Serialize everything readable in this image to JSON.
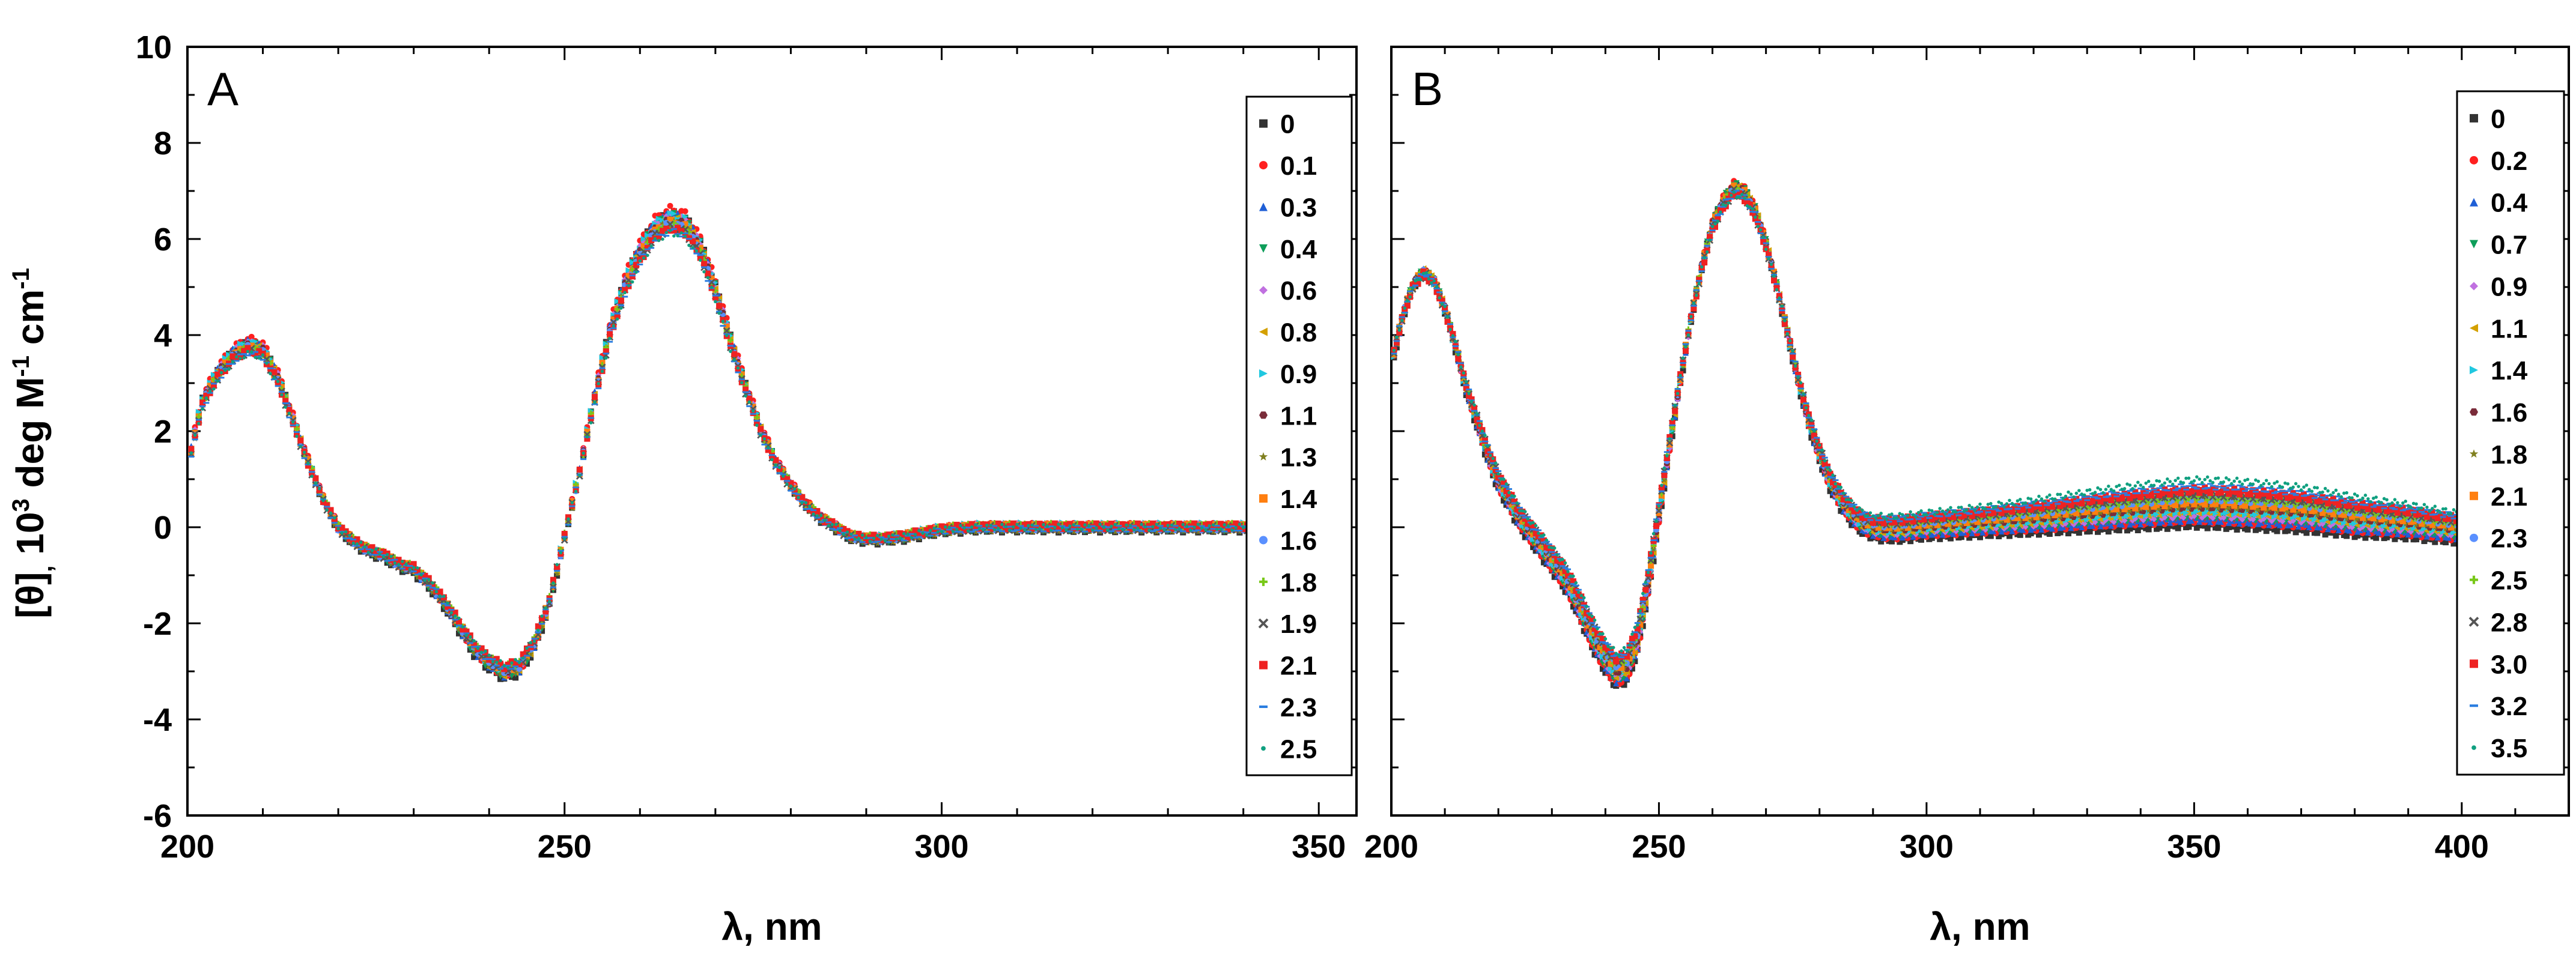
{
  "figure": {
    "y_axis_title": {
      "base": "[θ]",
      "sub": ",",
      "rest1": " 10",
      "sup1": "3",
      "rest2": " deg M",
      "sup2": "-1",
      "rest3": " cm",
      "sup3": "-1"
    }
  },
  "chart_data": [
    {
      "type": "scatter",
      "panel_label": "A",
      "xlabel": "λ, nm",
      "xlim": [
        200,
        355
      ],
      "ylim": [
        -6,
        10
      ],
      "xticks": [
        200,
        250,
        300,
        350
      ],
      "yticks": [
        -6,
        -4,
        -2,
        0,
        2,
        4,
        6,
        8,
        10
      ],
      "x_tick_labels": [
        "200",
        "250",
        "300",
        "350"
      ],
      "y_tick_labels": [
        "-6",
        "-4",
        "-2",
        "0",
        "2",
        "4",
        "6",
        "8",
        "10"
      ],
      "legend_position": "right",
      "curve_profile": {
        "x": [
          200,
          202,
          204,
          206,
          208,
          210,
          212,
          214,
          216,
          218,
          220,
          222,
          224,
          226,
          228,
          230,
          232,
          234,
          236,
          238,
          240,
          242,
          244,
          246,
          248,
          250,
          252,
          254,
          256,
          258,
          260,
          262,
          264,
          266,
          268,
          270,
          272,
          274,
          276,
          278,
          280,
          282,
          284,
          286,
          288,
          290,
          292,
          295,
          300,
          305,
          310,
          320,
          330,
          340,
          350,
          355
        ],
        "y": [
          1.3,
          2.7,
          3.3,
          3.7,
          3.9,
          3.8,
          3.2,
          2.3,
          1.4,
          0.6,
          0.0,
          -0.3,
          -0.5,
          -0.6,
          -0.8,
          -0.9,
          -1.2,
          -1.6,
          -2.1,
          -2.6,
          -2.9,
          -3.1,
          -3.0,
          -2.5,
          -1.6,
          -0.2,
          1.2,
          2.8,
          4.2,
          5.2,
          5.9,
          6.4,
          6.6,
          6.5,
          6.0,
          5.1,
          4.0,
          3.0,
          2.1,
          1.4,
          0.9,
          0.5,
          0.2,
          0.0,
          -0.2,
          -0.25,
          -0.25,
          -0.2,
          -0.05,
          0.0,
          0.0,
          0.0,
          0.0,
          0.0,
          0.0,
          0.0
        ]
      },
      "series": [
        {
          "name": "0",
          "color": "#333333",
          "marker": "square",
          "scale": 1.0,
          "shift": -0.05
        },
        {
          "name": "0.1",
          "color": "#ff2020",
          "marker": "circle",
          "scale": 1.0,
          "shift": 0.03
        },
        {
          "name": "0.3",
          "color": "#1f5fd6",
          "marker": "triangle-up",
          "scale": 0.99,
          "shift": 0.0
        },
        {
          "name": "0.4",
          "color": "#0e9e5a",
          "marker": "triangle-down",
          "scale": 0.99,
          "shift": -0.03
        },
        {
          "name": "0.6",
          "color": "#c070e0",
          "marker": "diamond",
          "scale": 0.98,
          "shift": 0.02
        },
        {
          "name": "0.8",
          "color": "#d4a000",
          "marker": "triangle-left",
          "scale": 0.98,
          "shift": -0.02
        },
        {
          "name": "0.9",
          "color": "#20c8e0",
          "marker": "triangle-right",
          "scale": 0.98,
          "shift": 0.04
        },
        {
          "name": "1.1",
          "color": "#7a2c3a",
          "marker": "hexagon",
          "scale": 0.97,
          "shift": 0.0
        },
        {
          "name": "1.3",
          "color": "#808020",
          "marker": "star",
          "scale": 0.97,
          "shift": -0.04
        },
        {
          "name": "1.4",
          "color": "#ff7f10",
          "marker": "square",
          "scale": 0.96,
          "shift": 0.01
        },
        {
          "name": "1.6",
          "color": "#5a90ff",
          "marker": "circle",
          "scale": 0.96,
          "shift": -0.01
        },
        {
          "name": "1.8",
          "color": "#78c818",
          "marker": "plus",
          "scale": 0.95,
          "shift": 0.03
        },
        {
          "name": "1.9",
          "color": "#555555",
          "marker": "x",
          "scale": 0.95,
          "shift": -0.02
        },
        {
          "name": "2.1",
          "color": "#ee2222",
          "marker": "square",
          "scale": 0.94,
          "shift": 0.02
        },
        {
          "name": "2.3",
          "color": "#2a7de0",
          "marker": "dash",
          "scale": 0.94,
          "shift": -0.03
        },
        {
          "name": "2.5",
          "color": "#10a080",
          "marker": "dot",
          "scale": 0.93,
          "shift": 0.0
        }
      ]
    },
    {
      "type": "scatter",
      "panel_label": "B",
      "xlabel": "λ, nm",
      "xlim": [
        200,
        420
      ],
      "ylim": [
        -6,
        10
      ],
      "xticks": [
        200,
        250,
        300,
        350,
        400
      ],
      "yticks": [
        -6,
        -4,
        -2,
        0,
        2,
        4,
        6,
        8,
        10
      ],
      "x_tick_labels": [
        "200",
        "250",
        "300",
        "350",
        "400"
      ],
      "legend_position": "right",
      "curve_profile": {
        "x": [
          200,
          202,
          204,
          206,
          208,
          210,
          212,
          214,
          216,
          218,
          220,
          222,
          224,
          226,
          228,
          230,
          232,
          234,
          236,
          238,
          240,
          242,
          244,
          246,
          248,
          250,
          252,
          254,
          256,
          258,
          260,
          262,
          264,
          266,
          268,
          270,
          272,
          274,
          276,
          278,
          280,
          282,
          284,
          286,
          288,
          290,
          292,
          295,
          300,
          310,
          320,
          330,
          340,
          350,
          360,
          370,
          380,
          390,
          400
        ],
        "y": [
          3.5,
          4.5,
          5.2,
          5.5,
          5.3,
          4.7,
          3.9,
          3.0,
          2.3,
          1.6,
          1.0,
          0.6,
          0.2,
          -0.1,
          -0.4,
          -0.7,
          -1.0,
          -1.4,
          -1.9,
          -2.4,
          -2.8,
          -3.1,
          -3.0,
          -2.4,
          -1.2,
          0.3,
          1.8,
          3.2,
          4.5,
          5.6,
          6.5,
          7.0,
          7.3,
          7.2,
          6.8,
          6.1,
          5.2,
          4.2,
          3.2,
          2.3,
          1.6,
          1.0,
          0.6,
          0.3,
          0.1,
          0.0,
          -0.05,
          -0.05,
          0.0,
          0.05,
          0.1,
          0.15,
          0.2,
          0.25,
          0.2,
          0.15,
          0.05,
          0.0,
          -0.1
        ]
      },
      "series": [
        {
          "name": "0",
          "color": "#333333",
          "marker": "square",
          "scale": 1.0,
          "shift": -0.2,
          "bump": 0.0
        },
        {
          "name": "0.2",
          "color": "#ff2020",
          "marker": "circle",
          "scale": 1.0,
          "shift": -0.15,
          "bump": 0.05
        },
        {
          "name": "0.4",
          "color": "#1f5fd6",
          "marker": "triangle-up",
          "scale": 0.99,
          "shift": -0.12,
          "bump": 0.05
        },
        {
          "name": "0.7",
          "color": "#0e9e5a",
          "marker": "triangle-down",
          "scale": 0.99,
          "shift": -0.1,
          "bump": 0.1
        },
        {
          "name": "0.9",
          "color": "#c070e0",
          "marker": "diamond",
          "scale": 0.98,
          "shift": -0.08,
          "bump": 0.1
        },
        {
          "name": "1.1",
          "color": "#d4a000",
          "marker": "triangle-left",
          "scale": 0.98,
          "shift": -0.05,
          "bump": 0.15
        },
        {
          "name": "1.4",
          "color": "#20c8e0",
          "marker": "triangle-right",
          "scale": 0.97,
          "shift": -0.03,
          "bump": 0.15
        },
        {
          "name": "1.6",
          "color": "#7a2c3a",
          "marker": "hexagon",
          "scale": 0.97,
          "shift": 0.0,
          "bump": 0.2
        },
        {
          "name": "1.8",
          "color": "#808020",
          "marker": "star",
          "scale": 0.96,
          "shift": 0.03,
          "bump": 0.2
        },
        {
          "name": "2.1",
          "color": "#ff7f10",
          "marker": "square",
          "scale": 0.96,
          "shift": 0.05,
          "bump": 0.25
        },
        {
          "name": "2.3",
          "color": "#5a90ff",
          "marker": "circle",
          "scale": 0.95,
          "shift": 0.08,
          "bump": 0.3
        },
        {
          "name": "2.5",
          "color": "#78c818",
          "marker": "plus",
          "scale": 0.95,
          "shift": 0.1,
          "bump": 0.3
        },
        {
          "name": "2.8",
          "color": "#555555",
          "marker": "x",
          "scale": 0.94,
          "shift": 0.12,
          "bump": 0.35
        },
        {
          "name": "3.0",
          "color": "#ee2222",
          "marker": "square",
          "scale": 0.93,
          "shift": 0.15,
          "bump": 0.4
        },
        {
          "name": "3.2",
          "color": "#2a7de0",
          "marker": "dash",
          "scale": 0.93,
          "shift": 0.18,
          "bump": 0.45
        },
        {
          "name": "3.5",
          "color": "#10a080",
          "marker": "dot",
          "scale": 0.92,
          "shift": 0.22,
          "bump": 0.55
        }
      ]
    }
  ]
}
